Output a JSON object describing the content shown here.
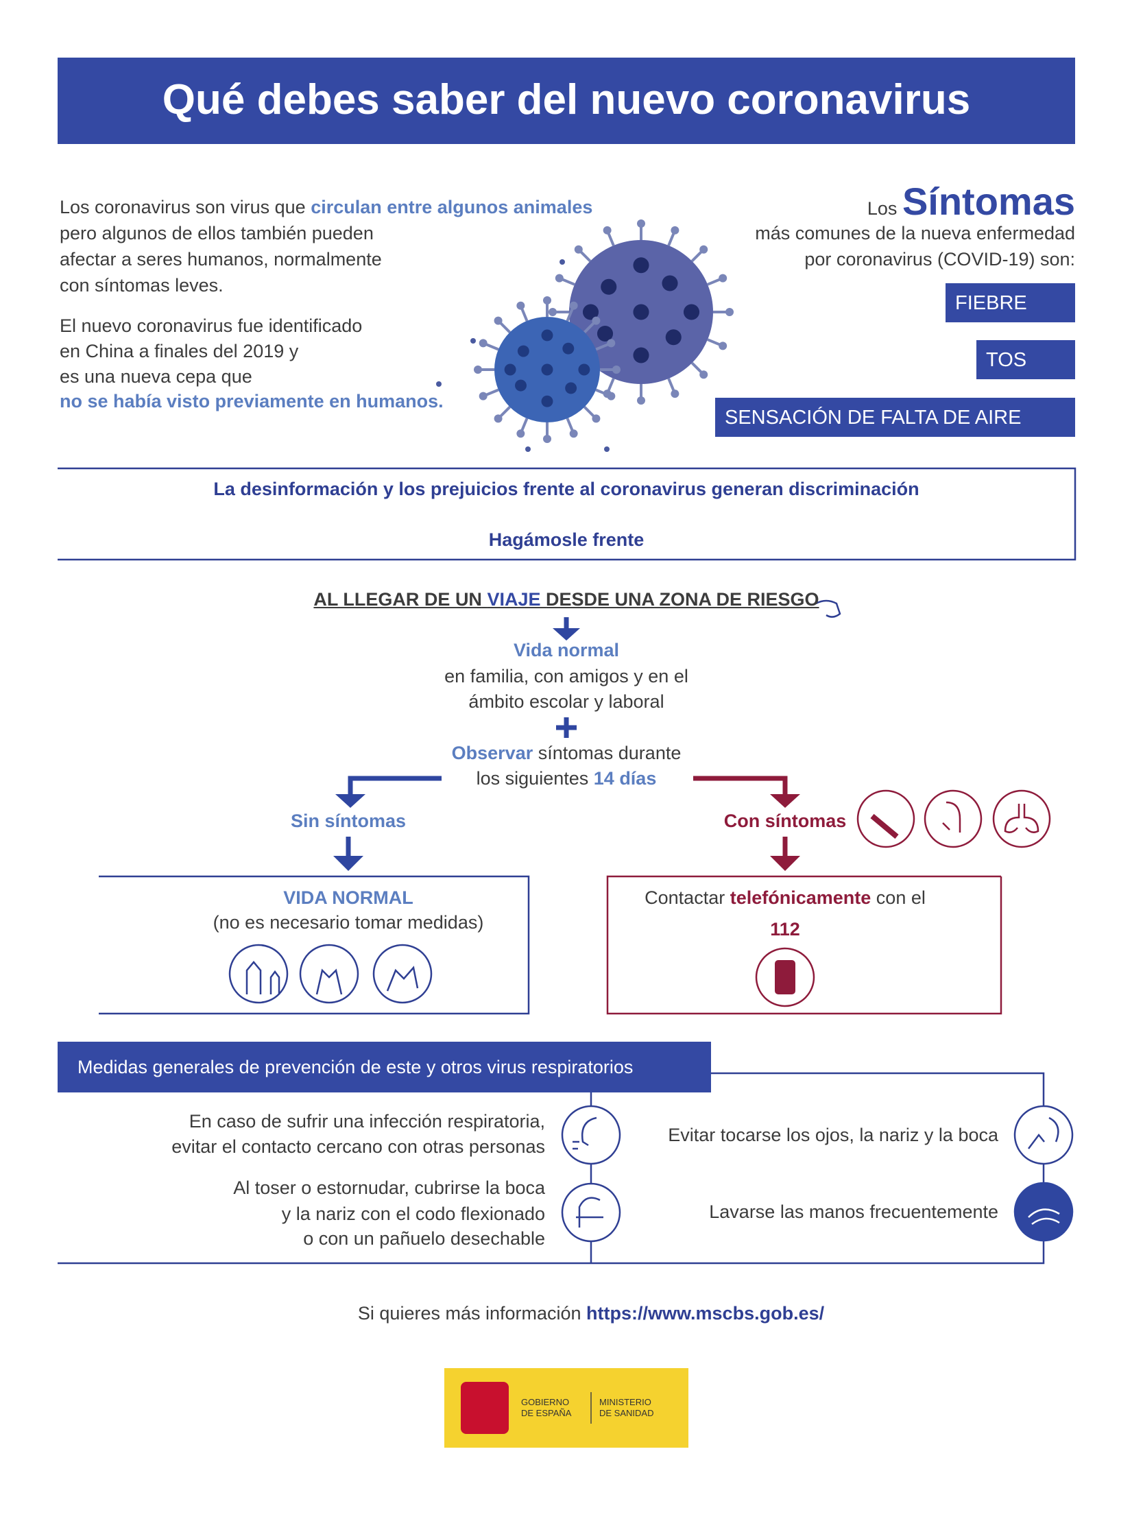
{
  "header": {
    "title": "Qué debes saber del nuevo coronavirus"
  },
  "intro": {
    "p1": {
      "start": "Los coronavirus son virus que",
      "highlight": "circulan entre algunos animales",
      "lines": [
        "pero algunos de ellos también pueden",
        "afectar a seres humanos, normalmente",
        "con síntomas leves."
      ]
    },
    "p2": {
      "lines": [
        "El nuevo coronavirus fue identificado",
        "en China a finales del 2019 y",
        "es una nueva cepa que"
      ],
      "highlight": "no se había visto previamente en humanos."
    }
  },
  "symptoms": {
    "pre": "Los",
    "title": "Síntomas",
    "lines": [
      "más comunes de la nueva enfermedad",
      "por coronavirus (COVID-19) son:"
    ],
    "items": [
      "FIEBRE",
      "TOS",
      "SENSACIÓN DE FALTA DE AIRE"
    ]
  },
  "discrimination": {
    "text": "La desinformación y los prejuicios frente al coronavirus generan discriminación",
    "call": "Hagámosle frente"
  },
  "flow": {
    "arrival": {
      "start": "AL LLEGAR DE UN",
      "highlight": "VIAJE",
      "end": "DESDE UNA ZONA DE RIESGO"
    },
    "normal": {
      "title": "Vida normal",
      "lines": [
        "en familia, con amigos y en el",
        "ámbito escolar y laboral"
      ]
    },
    "observe": {
      "highlight": "Observar",
      "rest": "síntomas durante",
      "line2": "los siguientes",
      "days": "14 días"
    },
    "without": {
      "label": "Sin síntomas",
      "title": "VIDA NORMAL",
      "note": "(no es necesario tomar medidas)"
    },
    "with": {
      "label": "Con síntomas",
      "start": "Contactar",
      "highlight": "telefónicamente",
      "end": "con el",
      "number": "112"
    }
  },
  "prevention": {
    "title": "Medidas generales de prevención de este y otros virus respiratorios",
    "items": [
      {
        "lines": [
          "En caso de sufrir una infección respiratoria,",
          "evitar el contacto cercano con otras personas"
        ]
      },
      {
        "lines": [
          "Al toser o estornudar, cubrirse la boca",
          "y la nariz con el codo flexionado",
          "o con un pañuelo desechable"
        ]
      },
      {
        "lines": [
          "Evitar tocarse los ojos, la nariz y la boca"
        ]
      },
      {
        "lines": [
          "Lavarse las manos frecuentemente"
        ]
      }
    ]
  },
  "footer": {
    "text": "Si quieres más información",
    "link": "https://www.mscbs.gob.es/"
  },
  "logo": {
    "government": [
      "GOBIERNO",
      "DE ESPAÑA"
    ],
    "ministry": [
      "MINISTERIO",
      "DE SANIDAD"
    ]
  }
}
